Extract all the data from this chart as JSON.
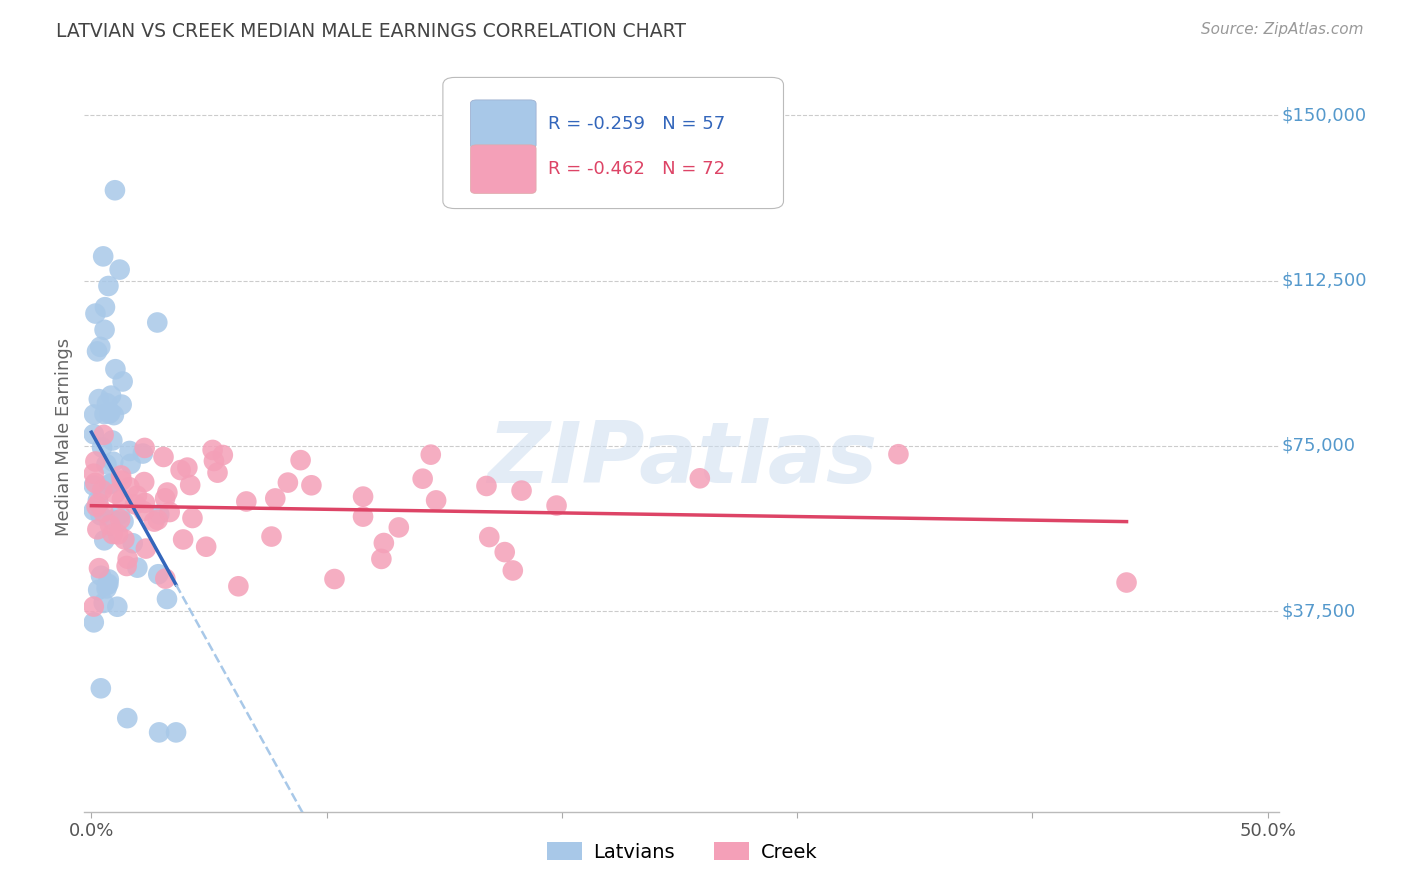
{
  "title": "LATVIAN VS CREEK MEDIAN MALE EARNINGS CORRELATION CHART",
  "source": "Source: ZipAtlas.com",
  "ylabel": "Median Male Earnings",
  "latvian_color": "#a8c8e8",
  "creek_color": "#f4a0b8",
  "latvian_line_color": "#3366bb",
  "creek_line_color": "#dd4466",
  "dashed_line_color": "#a8c8e8",
  "grid_color": "#cccccc",
  "title_color": "#444444",
  "right_tick_color": "#5599cc",
  "legend_latvian_r": "R = -0.259",
  "legend_latvian_n": "N = 57",
  "legend_creek_r": "R = -0.462",
  "legend_creek_n": "N = 72",
  "ytick_vals": [
    37500,
    75000,
    112500,
    150000
  ],
  "ytick_labels": [
    "$37,500",
    "$75,000",
    "$112,500",
    "$150,000"
  ],
  "xlim_min": -0.003,
  "xlim_max": 0.505,
  "ylim_min": -8000,
  "ylim_max": 162000
}
